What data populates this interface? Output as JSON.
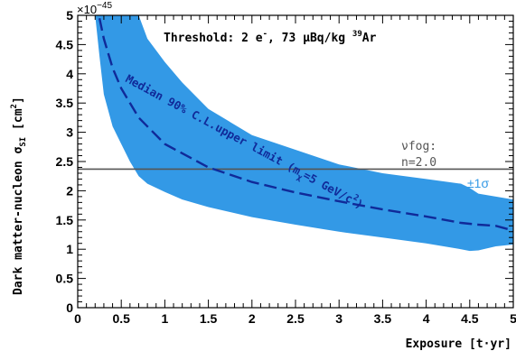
{
  "chart_data": {
    "type": "area",
    "title": "",
    "annotation": "Threshold: 2 e⁻, 73 μBq/kg ³⁹Ar",
    "xlabel": "Exposure [t·yr]",
    "ylabel": "Dark matter-nucleon σSI [cm²]",
    "y_multiplier": "×10⁻⁴⁵",
    "xlim": [
      0,
      5
    ],
    "ylim": [
      0,
      5
    ],
    "x_ticks": [
      "0",
      "0.5",
      "1",
      "1.5",
      "2",
      "2.5",
      "3",
      "3.5",
      "4",
      "4.5",
      "5"
    ],
    "y_ticks": [
      "0",
      "0.5",
      "1",
      "1.5",
      "2",
      "2.5",
      "3",
      "3.5",
      "4",
      "4.5",
      "5"
    ],
    "grid": false,
    "colors": {
      "band": "#3399e6",
      "median": "#102a99",
      "fog": "#555555",
      "band_label": "#3399e6"
    },
    "series": [
      {
        "name": "±1σ",
        "kind": "band",
        "x": [
          0.2,
          0.25,
          0.3,
          0.4,
          0.5,
          0.6,
          0.7,
          0.8,
          1.0,
          1.2,
          1.5,
          2.0,
          2.5,
          3.0,
          3.5,
          4.0,
          4.4,
          4.5,
          4.6,
          4.8,
          5.0
        ],
        "lower": [
          5.0,
          4.3,
          3.65,
          3.1,
          2.8,
          2.5,
          2.25,
          2.12,
          1.98,
          1.85,
          1.72,
          1.55,
          1.42,
          1.3,
          1.2,
          1.1,
          1.0,
          0.97,
          0.98,
          1.05,
          1.08
        ],
        "upper": [
          5.0,
          5.0,
          5.0,
          5.0,
          5.0,
          5.0,
          5.0,
          4.6,
          4.2,
          3.85,
          3.4,
          2.95,
          2.7,
          2.45,
          2.3,
          2.2,
          2.12,
          2.05,
          1.95,
          1.9,
          1.85
        ]
      },
      {
        "name": "Median 90% C.L. upper limit (mχ=5 GeV/c²)",
        "kind": "line",
        "x": [
          0.25,
          0.3,
          0.4,
          0.5,
          0.7,
          1.0,
          1.5,
          2.0,
          2.5,
          3.0,
          3.5,
          4.0,
          4.4,
          4.6,
          4.8,
          5.0
        ],
        "y": [
          4.95,
          4.6,
          4.1,
          3.75,
          3.25,
          2.8,
          2.4,
          2.15,
          1.97,
          1.82,
          1.68,
          1.56,
          1.45,
          1.42,
          1.4,
          1.32
        ]
      },
      {
        "name": "νfog: n=2.0",
        "kind": "hline",
        "y": 2.37
      }
    ],
    "labels": {
      "median_line1": "Median 90% C.L.upper limit (m",
      "median_sub": "χ",
      "median_line2": "=5 GeV/c",
      "median_sup": "2",
      "median_close": ")",
      "fog_line1": "νfog:",
      "fog_line2": "n=2.0",
      "band": "±1σ",
      "threshold_text": "Threshold: 2 e",
      "threshold_sup1": "-",
      "threshold_mid": ", 73 μBq/kg ",
      "threshold_sup2": "39",
      "threshold_end": "Ar",
      "multiplier_base": "×10",
      "multiplier_exp": "−45",
      "ylabel_main": "Dark matter-nucleon σ",
      "ylabel_sub": "SI",
      "ylabel_unit": " [cm",
      "ylabel_sup": "2",
      "ylabel_close": "]",
      "xlabel": "Exposure [t·yr]"
    }
  }
}
